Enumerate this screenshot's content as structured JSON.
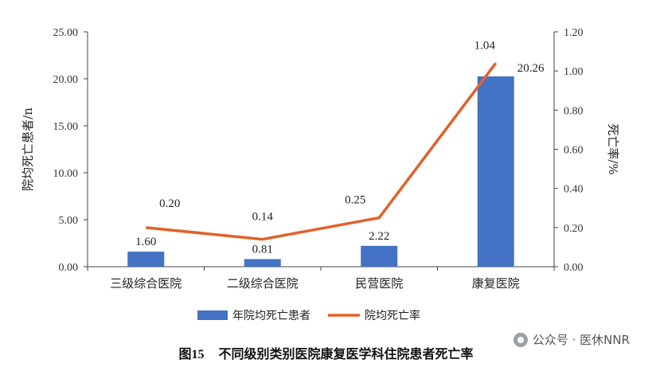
{
  "chart_data": {
    "type": "bar+line",
    "categories": [
      "三级综合医院",
      "二级综合医院",
      "民营医院",
      "康复医院"
    ],
    "bar_series": {
      "name": "年院均死亡患者",
      "values": [
        1.6,
        0.81,
        2.22,
        20.26
      ],
      "labels": [
        "1.60",
        "0.81",
        "2.22",
        "20.26"
      ],
      "color": "#4472C4"
    },
    "line_series": {
      "name": "院均死亡率",
      "values": [
        0.2,
        0.14,
        0.25,
        1.04
      ],
      "labels": [
        "0.20",
        "0.14",
        "0.25",
        "1.04"
      ],
      "color": "#E0622A"
    },
    "y_left": {
      "label": "院均死亡患者/n",
      "ylim": [
        0,
        25
      ],
      "ticks": [
        "0.00",
        "5.00",
        "10.00",
        "15.00",
        "20.00",
        "25.00"
      ]
    },
    "y_right": {
      "label": "死亡率/%",
      "ylim": [
        0,
        1.2
      ],
      "ticks": [
        "0.00",
        "0.20",
        "0.40",
        "0.60",
        "0.80",
        "1.00",
        "1.20"
      ]
    },
    "legend_position": "bottom",
    "grid": false
  },
  "caption": {
    "number": "图15",
    "text": "不同级别类别医院康复医学科住院患者死亡率"
  },
  "watermark": {
    "text": "公众号 · 医休NNR",
    "icon": "wechat-icon"
  }
}
